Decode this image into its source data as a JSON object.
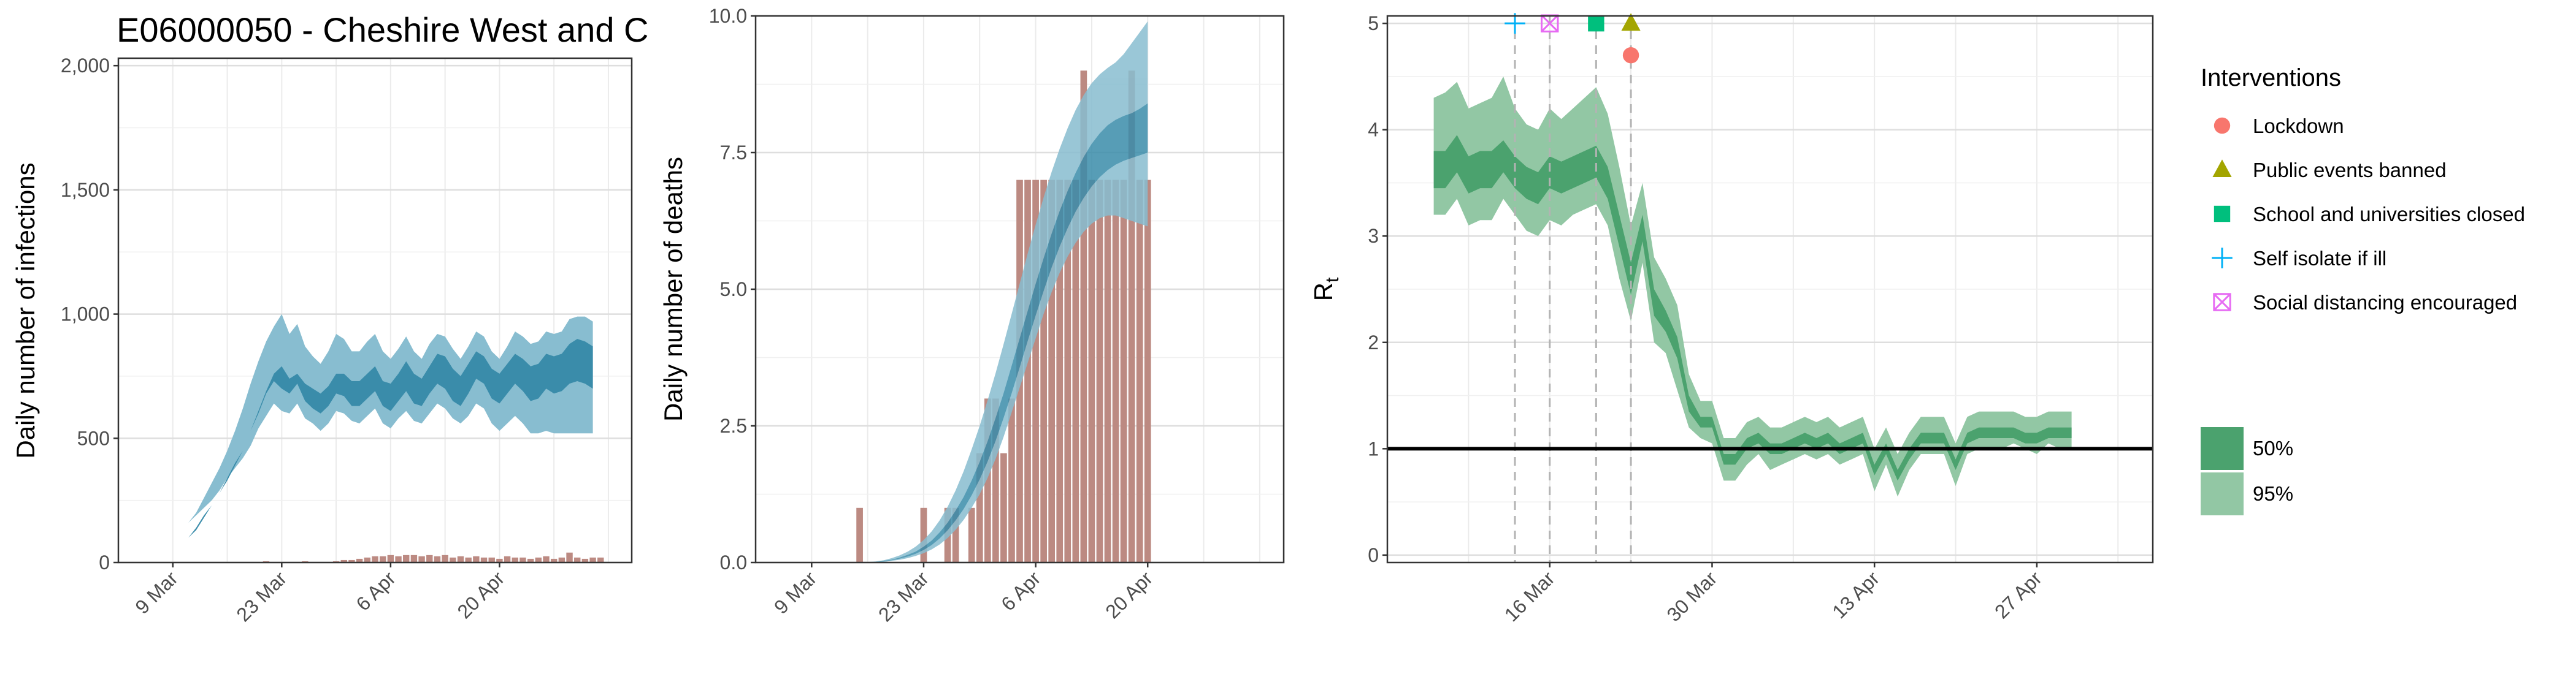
{
  "figure_title": "E06000050 - Cheshire West and C",
  "colors": {
    "bar": "#bc8a82",
    "band_outer": "#88bdd0",
    "band_inner": "#3a8caa",
    "rt_outer": "#92c7a4",
    "rt_inner": "#4ba26e",
    "threshold": "#000000",
    "lockdown": "#f8766d",
    "public_events": "#a3a500",
    "schools": "#00bf7d",
    "self_isolate": "#00b0f6",
    "social_distancing": "#e76bf3"
  },
  "chart_data": [
    {
      "type": "area",
      "id": "infections",
      "title": "E06000050 - Cheshire West and C",
      "xlabel": "",
      "ylabel": "Daily number of infections",
      "x_start": "2020-03-06",
      "xlim": [
        "2020-03-02",
        "2020-05-07"
      ],
      "ylim": [
        0,
        2030
      ],
      "yticks": [
        0,
        500,
        1000,
        1500,
        2000
      ],
      "ytick_labels": [
        "0",
        "500",
        "1,000",
        "1,500",
        "2,000"
      ],
      "xticks": [
        "2020-03-09",
        "2020-03-23",
        "2020-04-06",
        "2020-04-20"
      ],
      "xtick_labels": [
        "9 Mar",
        "23 Mar",
        "6 Apr",
        "20 Apr"
      ],
      "grid": true,
      "bands": {
        "lo95": [
          140,
          140,
          140,
          140,
          140,
          160,
          190,
          220,
          250,
          290,
          340,
          380,
          420,
          470,
          540,
          590,
          640,
          610,
          600,
          640,
          580,
          560,
          530,
          560,
          610,
          600,
          570,
          560,
          590,
          620,
          560,
          540,
          580,
          610,
          570,
          560,
          600,
          640,
          620,
          580,
          560,
          590,
          640,
          620,
          560,
          530,
          560,
          590,
          560,
          520,
          520,
          530,
          520,
          520,
          520,
          520,
          520,
          520
        ],
        "lo50": [
          80,
          80,
          80,
          80,
          80,
          100,
          140,
          190,
          230,
          280,
          340,
          400,
          450,
          530,
          600,
          680,
          730,
          700,
          680,
          720,
          650,
          620,
          600,
          630,
          680,
          670,
          630,
          630,
          660,
          690,
          630,
          610,
          650,
          690,
          640,
          630,
          680,
          720,
          700,
          650,
          630,
          680,
          740,
          720,
          660,
          640,
          680,
          720,
          690,
          650,
          660,
          700,
          680,
          690,
          720,
          730,
          720,
          700
        ],
        "hi50": [
          80,
          80,
          80,
          80,
          80,
          100,
          130,
          180,
          230,
          280,
          330,
          390,
          450,
          530,
          610,
          690,
          760,
          790,
          740,
          760,
          720,
          700,
          680,
          710,
          760,
          760,
          730,
          730,
          760,
          790,
          730,
          720,
          760,
          810,
          760,
          740,
          790,
          840,
          830,
          780,
          750,
          800,
          850,
          830,
          780,
          760,
          800,
          840,
          820,
          790,
          800,
          840,
          830,
          840,
          880,
          900,
          890,
          870
        ],
        "hi95": [
          140,
          140,
          140,
          140,
          140,
          160,
          200,
          260,
          320,
          380,
          450,
          530,
          620,
          720,
          810,
          890,
          950,
          1000,
          920,
          960,
          870,
          830,
          800,
          850,
          920,
          900,
          850,
          850,
          890,
          920,
          850,
          820,
          860,
          910,
          850,
          820,
          880,
          920,
          910,
          860,
          820,
          870,
          930,
          910,
          850,
          820,
          870,
          930,
          910,
          880,
          890,
          930,
          920,
          930,
          980,
          990,
          990,
          970
        ]
      },
      "bars": [
        0,
        0,
        0,
        0,
        0,
        0,
        0,
        0,
        0,
        0,
        0,
        0,
        0,
        0,
        0,
        5,
        0,
        0,
        0,
        0,
        5,
        0,
        0,
        0,
        5,
        10,
        10,
        15,
        20,
        25,
        25,
        30,
        25,
        30,
        30,
        25,
        30,
        25,
        30,
        20,
        25,
        20,
        25,
        20,
        20,
        15,
        25,
        20,
        20,
        15,
        20,
        25,
        15,
        20,
        40,
        20,
        15,
        20,
        20
      ]
    },
    {
      "type": "area",
      "id": "deaths",
      "title": "",
      "xlabel": "",
      "ylabel": "Daily number of deaths",
      "x_start": "2020-03-06",
      "xlim": [
        "2020-03-02",
        "2020-05-07"
      ],
      "ylim": [
        0,
        10
      ],
      "yticks": [
        0,
        2.5,
        5,
        7.5,
        10
      ],
      "ytick_labels": [
        "0.0",
        "2.5",
        "5.0",
        "7.5",
        "10.0"
      ],
      "xticks": [
        "2020-03-09",
        "2020-03-23",
        "2020-04-06",
        "2020-04-20"
      ],
      "xtick_labels": [
        "9 Mar",
        "23 Mar",
        "6 Apr",
        "20 Apr"
      ],
      "grid": true,
      "bars": [
        0,
        0,
        0,
        0,
        0,
        0,
        0,
        0,
        0,
        1,
        0,
        0,
        0,
        0,
        0,
        0,
        0,
        1,
        0,
        0,
        1,
        1,
        0,
        1,
        2,
        3,
        3,
        2,
        3,
        7,
        7,
        7,
        7,
        7,
        7,
        7,
        7,
        9,
        7,
        7,
        7,
        7,
        7,
        9,
        7,
        7
      ],
      "bands": {
        "lo95": [
          0,
          0,
          0,
          0,
          0,
          0,
          0,
          0,
          0,
          0,
          0,
          0,
          0.01,
          0.03,
          0.05,
          0.08,
          0.12,
          0.17,
          0.24,
          0.33,
          0.45,
          0.6,
          0.78,
          1.0,
          1.25,
          1.55,
          1.9,
          2.3,
          2.75,
          3.2,
          3.65,
          4.1,
          4.55,
          4.95,
          5.3,
          5.6,
          5.85,
          6.05,
          6.2,
          6.3,
          6.35,
          6.35,
          6.3,
          6.25,
          6.2,
          6.15
        ],
        "lo50": [
          0,
          0,
          0,
          0,
          0,
          0,
          0,
          0,
          0,
          0,
          0,
          0.01,
          0.02,
          0.04,
          0.07,
          0.11,
          0.16,
          0.23,
          0.32,
          0.44,
          0.59,
          0.77,
          0.98,
          1.23,
          1.52,
          1.85,
          2.23,
          2.65,
          3.1,
          3.57,
          4.05,
          4.52,
          4.97,
          5.4,
          5.78,
          6.12,
          6.42,
          6.67,
          6.88,
          7.05,
          7.18,
          7.28,
          7.35,
          7.4,
          7.45,
          7.5
        ],
        "hi50": [
          0,
          0,
          0,
          0,
          0,
          0,
          0,
          0,
          0,
          0,
          0,
          0.01,
          0.03,
          0.05,
          0.09,
          0.14,
          0.2,
          0.29,
          0.4,
          0.55,
          0.73,
          0.95,
          1.2,
          1.5,
          1.84,
          2.22,
          2.65,
          3.1,
          3.6,
          4.1,
          4.6,
          5.1,
          5.57,
          6.02,
          6.43,
          6.8,
          7.13,
          7.42,
          7.66,
          7.85,
          8.0,
          8.1,
          8.17,
          8.22,
          8.3,
          8.4
        ],
        "hi95": [
          0,
          0,
          0,
          0,
          0,
          0,
          0,
          0,
          0,
          0,
          0.01,
          0.02,
          0.04,
          0.08,
          0.13,
          0.2,
          0.29,
          0.41,
          0.57,
          0.77,
          1.02,
          1.32,
          1.67,
          2.07,
          2.5,
          2.97,
          3.47,
          4.0,
          4.55,
          5.1,
          5.65,
          6.18,
          6.68,
          7.15,
          7.57,
          7.95,
          8.28,
          8.55,
          8.77,
          8.93,
          9.05,
          9.15,
          9.3,
          9.5,
          9.7,
          9.9
        ]
      }
    },
    {
      "type": "area",
      "id": "rt",
      "title": "",
      "xlabel": "",
      "ylabel": "R",
      "ylabel_sub": "t",
      "x_start": "2020-03-06",
      "xlim": [
        "2020-03-02",
        "2020-05-07"
      ],
      "ylim": [
        -0.07,
        5.07
      ],
      "yticks": [
        0,
        1,
        2,
        3,
        4,
        5
      ],
      "ytick_labels": [
        "0",
        "1",
        "2",
        "3",
        "4",
        "5"
      ],
      "xticks": [
        "2020-03-16",
        "2020-03-30",
        "2020-04-13",
        "2020-04-27"
      ],
      "xtick_labels": [
        "16 Mar",
        "30 Mar",
        "13 Apr",
        "27 Apr"
      ],
      "grid": true,
      "hline": 1,
      "bands": {
        "lo95": [
          3.2,
          3.2,
          3.35,
          3.1,
          3.15,
          3.15,
          3.35,
          3.2,
          3.05,
          3.0,
          3.15,
          3.1,
          3.2,
          3.25,
          3.3,
          3.1,
          2.6,
          2.2,
          2.75,
          2.0,
          1.9,
          1.55,
          1.2,
          1.1,
          1.05,
          0.7,
          0.7,
          0.85,
          0.95,
          0.8,
          0.85,
          0.9,
          0.95,
          0.9,
          0.95,
          0.85,
          0.9,
          0.95,
          0.6,
          0.85,
          0.55,
          0.8,
          0.95,
          0.95,
          0.95,
          0.65,
          0.95,
          1.0,
          1.0,
          1.0,
          1.05,
          1.0,
          0.95,
          1.05,
          1.0,
          1.0
        ],
        "lo50": [
          3.45,
          3.45,
          3.6,
          3.4,
          3.45,
          3.45,
          3.6,
          3.45,
          3.35,
          3.3,
          3.45,
          3.4,
          3.45,
          3.5,
          3.55,
          3.35,
          2.9,
          2.45,
          2.95,
          2.25,
          2.1,
          1.85,
          1.35,
          1.2,
          1.2,
          0.85,
          0.85,
          1.0,
          1.05,
          0.95,
          0.95,
          1.0,
          1.05,
          1.0,
          1.05,
          0.95,
          1.0,
          1.05,
          0.75,
          0.95,
          0.7,
          0.9,
          1.05,
          1.05,
          1.05,
          0.8,
          1.05,
          1.1,
          1.1,
          1.1,
          1.1,
          1.05,
          1.05,
          1.1,
          1.1,
          1.1
        ],
        "hi50": [
          3.8,
          3.8,
          3.95,
          3.75,
          3.8,
          3.8,
          3.9,
          3.75,
          3.65,
          3.6,
          3.75,
          3.7,
          3.75,
          3.8,
          3.85,
          3.65,
          3.2,
          2.75,
          3.2,
          2.5,
          2.3,
          2.05,
          1.5,
          1.3,
          1.3,
          0.95,
          0.95,
          1.1,
          1.15,
          1.05,
          1.05,
          1.1,
          1.15,
          1.1,
          1.15,
          1.05,
          1.1,
          1.15,
          0.85,
          1.05,
          0.8,
          1.0,
          1.15,
          1.15,
          1.15,
          0.9,
          1.15,
          1.2,
          1.2,
          1.2,
          1.2,
          1.15,
          1.15,
          1.2,
          1.2,
          1.2
        ],
        "hi95": [
          4.3,
          4.35,
          4.45,
          4.2,
          4.25,
          4.3,
          4.5,
          4.2,
          4.05,
          4.0,
          4.2,
          4.1,
          4.2,
          4.3,
          4.4,
          4.15,
          3.65,
          3.1,
          3.5,
          2.8,
          2.6,
          2.35,
          1.7,
          1.45,
          1.45,
          1.1,
          1.1,
          1.25,
          1.3,
          1.2,
          1.2,
          1.25,
          1.3,
          1.25,
          1.3,
          1.2,
          1.25,
          1.3,
          1.0,
          1.2,
          0.95,
          1.15,
          1.3,
          1.3,
          1.3,
          1.05,
          1.3,
          1.35,
          1.35,
          1.35,
          1.35,
          1.3,
          1.3,
          1.35,
          1.35,
          1.35
        ]
      },
      "vlines": [
        "2020-03-13",
        "2020-03-16",
        "2020-03-20",
        "2020-03-23"
      ],
      "interventions": [
        {
          "name": "Lockdown",
          "date": "2020-03-23",
          "y": 4.7,
          "shape": "circle",
          "color_key": "lockdown"
        },
        {
          "name": "Public events banned",
          "date": "2020-03-23",
          "y": 5.0,
          "shape": "triangle",
          "color_key": "public_events"
        },
        {
          "name": "School and universities closed",
          "date": "2020-03-20",
          "y": 5.0,
          "shape": "square",
          "color_key": "schools"
        },
        {
          "name": "Self isolate if ill",
          "date": "2020-03-13",
          "y": 5.0,
          "shape": "plus",
          "color_key": "self_isolate"
        },
        {
          "name": "Social distancing encouraged",
          "date": "2020-03-16",
          "y": 5.0,
          "shape": "boxx",
          "color_key": "social_distancing"
        }
      ]
    }
  ],
  "legend": {
    "interventions_title": "Interventions",
    "interventions": [
      {
        "label": "Lockdown",
        "shape": "circle",
        "color_key": "lockdown"
      },
      {
        "label": "Public events banned",
        "shape": "triangle",
        "color_key": "public_events"
      },
      {
        "label": "School and universities closed",
        "shape": "square",
        "color_key": "schools"
      },
      {
        "label": "Self isolate if ill",
        "shape": "plus",
        "color_key": "self_isolate"
      },
      {
        "label": "Social distancing encouraged",
        "shape": "boxx",
        "color_key": "social_distancing"
      }
    ],
    "bands": [
      {
        "label": "50%",
        "color_key": "rt_inner"
      },
      {
        "label": "95%",
        "color_key": "rt_outer"
      }
    ]
  }
}
